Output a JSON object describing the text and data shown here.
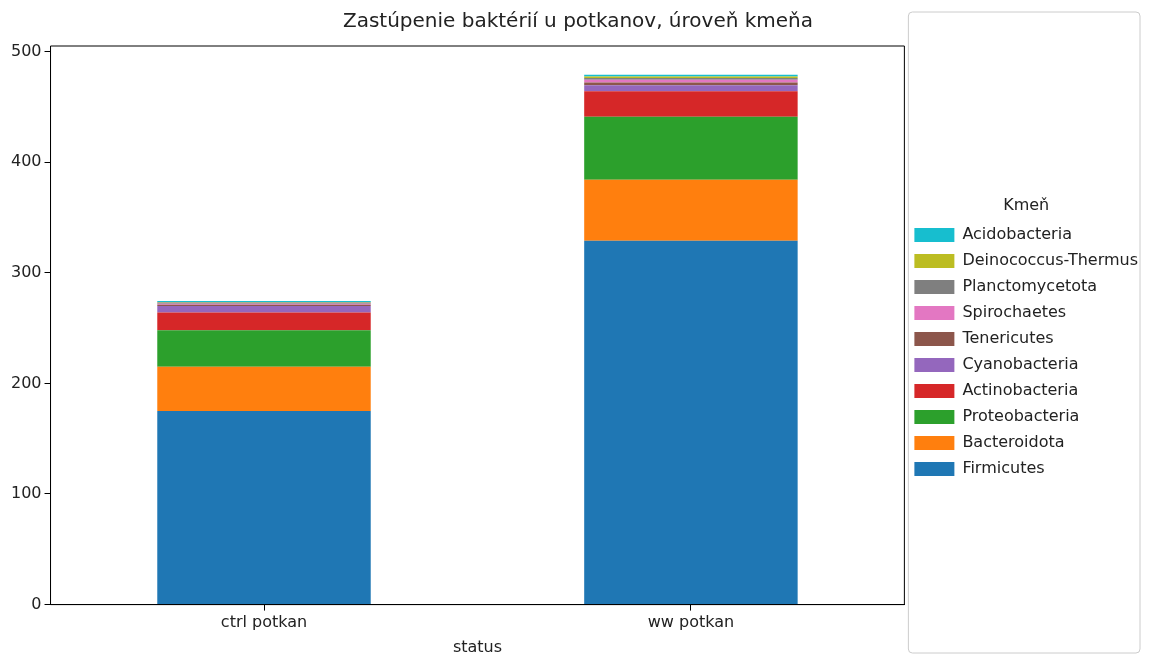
{
  "chart_data": {
    "type": "bar",
    "title": "Zastúpenie baktérií u potkanov, úroveň kmeňa",
    "xlabel": "status",
    "legend_title": "Kmeň",
    "legend": "right",
    "stacked": true,
    "grid": false,
    "categories": [
      "ctrl potkan",
      "ww potkan"
    ],
    "ylim": [
      0,
      505
    ],
    "yticks": [
      0,
      100,
      200,
      300,
      400,
      500
    ],
    "series": [
      {
        "name": "Firmicutes",
        "color": "#1f77b4",
        "values": [
          175,
          329
        ]
      },
      {
        "name": "Bacteroidota",
        "color": "#ff7f0e",
        "values": [
          40,
          55
        ]
      },
      {
        "name": "Proteobacteria",
        "color": "#2ca02c",
        "values": [
          33,
          57
        ]
      },
      {
        "name": "Actinobacteria",
        "color": "#d62728",
        "values": [
          16,
          23
        ]
      },
      {
        "name": "Cyanobacteria",
        "color": "#9467bd",
        "values": [
          6,
          5.5
        ]
      },
      {
        "name": "Tenericutes",
        "color": "#8c564b",
        "values": [
          1,
          2.5
        ]
      },
      {
        "name": "Spirochaetes",
        "color": "#e377c2",
        "values": [
          1,
          2.5
        ]
      },
      {
        "name": "Planctomycetota",
        "color": "#7f7f7f",
        "values": [
          1,
          1.5
        ]
      },
      {
        "name": "Deinococcus-Thermus",
        "color": "#bcbd22",
        "values": [
          0.5,
          1.5
        ]
      },
      {
        "name": "Acidobacteria",
        "color": "#17becf",
        "values": [
          1,
          1.5
        ]
      }
    ]
  }
}
